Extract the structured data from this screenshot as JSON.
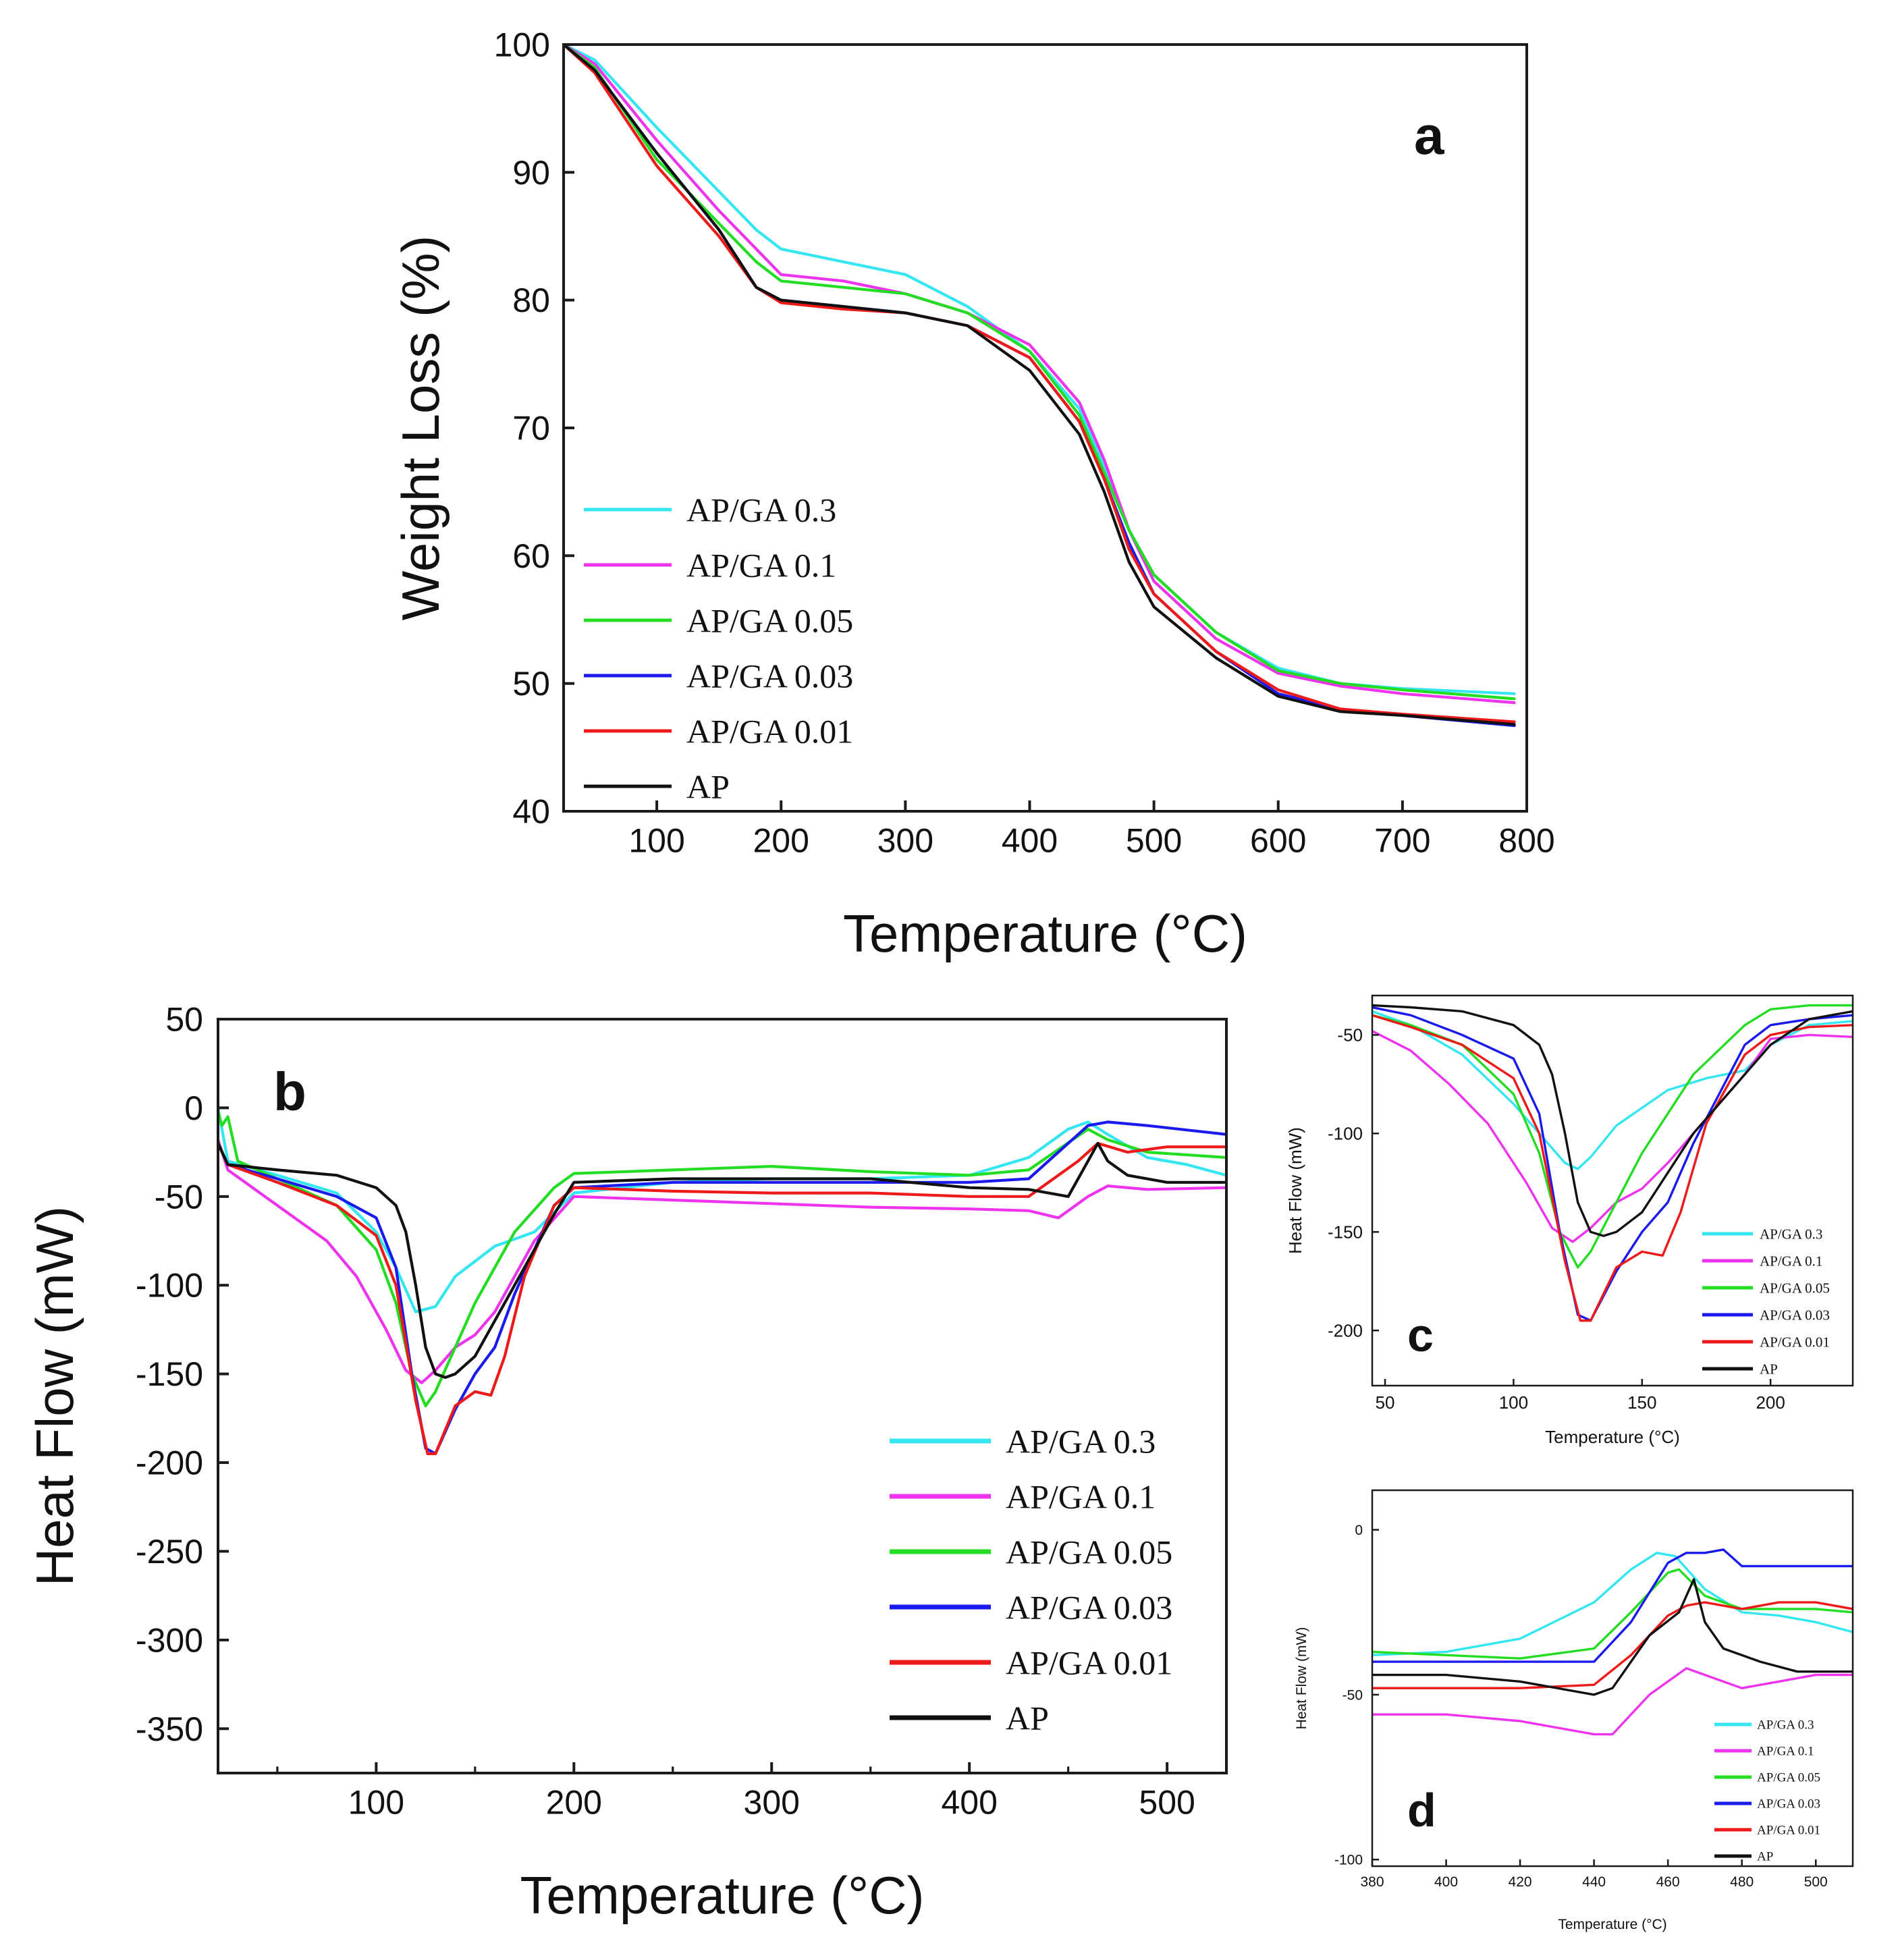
{
  "colors": {
    "AP/GA 0.3": "#33e6f0",
    "AP/GA 0.1": "#ee33ee",
    "AP/GA 0.05": "#22dd22",
    "AP/GA 0.03": "#1a1aee",
    "AP/GA 0.01": "#ee1a1a",
    "AP": "#111111"
  },
  "chart_data": [
    {
      "id": "a",
      "type": "line",
      "panel_label": "a",
      "xlabel": "Temperature (°C)",
      "ylabel": "Weight Loss (%)",
      "xlim": [
        25,
        800
      ],
      "ylim": [
        40,
        100
      ],
      "xticks": [
        100,
        200,
        300,
        400,
        500,
        600,
        700,
        800
      ],
      "yticks": [
        40,
        50,
        60,
        70,
        80,
        90,
        100
      ],
      "legend_position": "middle-left",
      "series": [
        {
          "name": "AP/GA 0.3",
          "x": [
            25,
            50,
            100,
            150,
            180,
            200,
            250,
            300,
            350,
            400,
            440,
            460,
            480,
            500,
            550,
            600,
            650,
            700,
            790
          ],
          "y": [
            100,
            98.8,
            93.5,
            88.5,
            85.5,
            84,
            83,
            82,
            79.5,
            76,
            71.5,
            67,
            62,
            58.5,
            54,
            51.2,
            50,
            49.6,
            49.2
          ]
        },
        {
          "name": "AP/GA 0.1",
          "x": [
            25,
            50,
            100,
            150,
            180,
            200,
            250,
            300,
            350,
            400,
            440,
            460,
            480,
            500,
            550,
            600,
            650,
            700,
            790
          ],
          "y": [
            100,
            98.5,
            92.5,
            87,
            84,
            82,
            81.5,
            80.5,
            79,
            76.5,
            72,
            67.5,
            62,
            58,
            53.5,
            50.8,
            49.8,
            49.2,
            48.5
          ]
        },
        {
          "name": "AP/GA 0.05",
          "x": [
            25,
            50,
            100,
            150,
            180,
            200,
            250,
            300,
            350,
            400,
            440,
            460,
            480,
            500,
            550,
            600,
            650,
            700,
            790
          ],
          "y": [
            100,
            98.2,
            91,
            86,
            83,
            81.5,
            81,
            80.5,
            79,
            76,
            71,
            66.5,
            62,
            58.5,
            54,
            51,
            50,
            49.5,
            48.8
          ]
        },
        {
          "name": "AP/GA 0.03",
          "x": [
            25,
            50,
            100,
            150,
            180,
            200,
            250,
            300,
            350,
            400,
            440,
            460,
            480,
            500,
            550,
            600,
            650,
            700,
            790
          ],
          "y": [
            100,
            98,
            91.5,
            85.5,
            81,
            80,
            79.5,
            79,
            78,
            75.5,
            70.5,
            66,
            61,
            57,
            52.5,
            49.2,
            48,
            47.5,
            46.7
          ]
        },
        {
          "name": "AP/GA 0.01",
          "x": [
            25,
            50,
            100,
            150,
            180,
            200,
            250,
            300,
            350,
            400,
            440,
            460,
            480,
            500,
            550,
            600,
            650,
            700,
            790
          ],
          "y": [
            100,
            97.8,
            90.5,
            85,
            81,
            79.8,
            79.3,
            79,
            78,
            75.5,
            70.5,
            66,
            60.5,
            57,
            52.5,
            49.5,
            48,
            47.6,
            47
          ]
        },
        {
          "name": "AP",
          "x": [
            25,
            50,
            100,
            150,
            180,
            200,
            250,
            300,
            350,
            400,
            440,
            460,
            480,
            500,
            550,
            600,
            650,
            700,
            790
          ],
          "y": [
            100,
            98,
            91.5,
            85.5,
            81,
            80,
            79.5,
            79,
            78,
            74.5,
            69.5,
            65,
            59.5,
            56,
            52,
            49,
            47.8,
            47.5,
            46.8
          ]
        }
      ]
    },
    {
      "id": "b",
      "type": "line",
      "panel_label": "b",
      "xlabel": "Temperature (°C)",
      "ylabel": "Heat Flow (mW)",
      "xlim": [
        20,
        530
      ],
      "ylim": [
        -375,
        50
      ],
      "xticks": [
        100,
        200,
        300,
        400,
        500
      ],
      "yticks": [
        50,
        0,
        -50,
        -100,
        -150,
        -200,
        -250,
        -300,
        -350
      ],
      "legend_position": "bottom-right",
      "series": [
        {
          "name": "AP/GA 0.3",
          "x": [
            20,
            25,
            50,
            80,
            100,
            110,
            120,
            130,
            140,
            160,
            180,
            200,
            250,
            300,
            350,
            400,
            430,
            450,
            460,
            470,
            490,
            510,
            530
          ],
          "y": [
            0,
            -30,
            -38,
            -48,
            -70,
            -90,
            -115,
            -112,
            -95,
            -78,
            -70,
            -48,
            -42,
            -40,
            -40,
            -38,
            -28,
            -12,
            -8,
            -15,
            -28,
            -32,
            -38
          ]
        },
        {
          "name": "AP/GA 0.1",
          "x": [
            20,
            25,
            50,
            75,
            90,
            105,
            115,
            123,
            130,
            140,
            150,
            160,
            180,
            200,
            250,
            300,
            350,
            400,
            430,
            445,
            460,
            470,
            490,
            530
          ],
          "y": [
            -18,
            -35,
            -55,
            -75,
            -95,
            -125,
            -148,
            -155,
            -148,
            -135,
            -128,
            -115,
            -75,
            -50,
            -52,
            -54,
            -56,
            -57,
            -58,
            -62,
            -50,
            -44,
            -46,
            -45
          ]
        },
        {
          "name": "AP/GA 0.05",
          "x": [
            20,
            22,
            25,
            30,
            50,
            80,
            100,
            110,
            118,
            125,
            130,
            140,
            150,
            170,
            190,
            200,
            250,
            300,
            350,
            400,
            430,
            460,
            470,
            490,
            530
          ],
          "y": [
            -2,
            -10,
            -5,
            -30,
            -40,
            -55,
            -80,
            -110,
            -150,
            -168,
            -160,
            -135,
            -110,
            -70,
            -45,
            -37,
            -35,
            -33,
            -36,
            -38,
            -35,
            -12,
            -18,
            -25,
            -28
          ]
        },
        {
          "name": "AP/GA 0.03",
          "x": [
            20,
            25,
            50,
            80,
            100,
            110,
            118,
            125,
            130,
            140,
            150,
            160,
            170,
            180,
            190,
            200,
            250,
            300,
            350,
            400,
            430,
            460,
            470,
            490,
            530
          ],
          "y": [
            -20,
            -32,
            -40,
            -50,
            -62,
            -90,
            -150,
            -192,
            -195,
            -170,
            -150,
            -135,
            -105,
            -80,
            -55,
            -45,
            -42,
            -42,
            -42,
            -42,
            -40,
            -10,
            -8,
            -10,
            -15
          ]
        },
        {
          "name": "AP/GA 0.01",
          "x": [
            20,
            25,
            50,
            80,
            100,
            110,
            120,
            126,
            130,
            140,
            150,
            158,
            165,
            175,
            190,
            200,
            250,
            300,
            350,
            400,
            430,
            455,
            465,
            480,
            500,
            530
          ],
          "y": [
            -20,
            -32,
            -42,
            -55,
            -72,
            -100,
            -165,
            -195,
            -195,
            -168,
            -160,
            -162,
            -140,
            -95,
            -55,
            -45,
            -47,
            -48,
            -48,
            -50,
            -50,
            -30,
            -20,
            -25,
            -22,
            -22
          ]
        },
        {
          "name": "AP",
          "x": [
            20,
            25,
            50,
            80,
            100,
            110,
            115,
            120,
            125,
            130,
            135,
            140,
            150,
            170,
            190,
            200,
            250,
            300,
            350,
            400,
            430,
            450,
            465,
            470,
            480,
            500,
            530
          ],
          "y": [
            -20,
            -32,
            -35,
            -38,
            -45,
            -55,
            -70,
            -100,
            -135,
            -150,
            -152,
            -150,
            -140,
            -100,
            -60,
            -42,
            -40,
            -40,
            -40,
            -45,
            -46,
            -50,
            -20,
            -30,
            -38,
            -42,
            -42
          ]
        }
      ]
    },
    {
      "id": "c",
      "type": "line",
      "panel_label": "c",
      "xlabel": "Temperature (°C)",
      "ylabel": "Heat Flow (mW)",
      "xlim": [
        45,
        232
      ],
      "ylim": [
        -228,
        -30
      ],
      "xticks": [
        50,
        100,
        150,
        200
      ],
      "yticks": [
        -50,
        -100,
        -150,
        -200
      ],
      "legend_position": "bottom-right",
      "series": [
        {
          "name": "AP/GA 0.3",
          "x": [
            45,
            60,
            80,
            100,
            110,
            120,
            125,
            130,
            140,
            160,
            175,
            190,
            200,
            215,
            232
          ],
          "y": [
            -38,
            -45,
            -60,
            -85,
            -100,
            -115,
            -118,
            -112,
            -96,
            -78,
            -72,
            -68,
            -55,
            -45,
            -43
          ]
        },
        {
          "name": "AP/GA 0.1",
          "x": [
            45,
            60,
            75,
            90,
            105,
            115,
            123,
            130,
            140,
            150,
            160,
            170,
            180,
            190,
            200,
            215,
            232
          ],
          "y": [
            -48,
            -58,
            -75,
            -95,
            -125,
            -148,
            -155,
            -148,
            -135,
            -128,
            -115,
            -100,
            -85,
            -70,
            -52,
            -50,
            -51
          ]
        },
        {
          "name": "AP/GA 0.05",
          "x": [
            45,
            60,
            80,
            100,
            110,
            118,
            125,
            130,
            140,
            150,
            170,
            190,
            200,
            215,
            232
          ],
          "y": [
            -40,
            -45,
            -55,
            -80,
            -110,
            -150,
            -168,
            -160,
            -135,
            -110,
            -70,
            -45,
            -37,
            -35,
            -35
          ]
        },
        {
          "name": "AP/GA 0.03",
          "x": [
            45,
            60,
            80,
            100,
            110,
            118,
            125,
            130,
            140,
            150,
            160,
            170,
            180,
            190,
            200,
            215,
            232
          ],
          "y": [
            -36,
            -40,
            -50,
            -62,
            -90,
            -150,
            -192,
            -195,
            -170,
            -150,
            -135,
            -105,
            -80,
            -55,
            -45,
            -42,
            -40
          ]
        },
        {
          "name": "AP/GA 0.01",
          "x": [
            45,
            60,
            80,
            100,
            110,
            120,
            126,
            130,
            140,
            150,
            158,
            165,
            175,
            190,
            200,
            215,
            232
          ],
          "y": [
            -40,
            -46,
            -55,
            -72,
            -100,
            -165,
            -195,
            -195,
            -168,
            -160,
            -162,
            -140,
            -95,
            -60,
            -50,
            -46,
            -45
          ]
        },
        {
          "name": "AP",
          "x": [
            45,
            60,
            80,
            100,
            110,
            115,
            120,
            125,
            130,
            135,
            140,
            150,
            170,
            190,
            200,
            215,
            232
          ],
          "y": [
            -35,
            -36,
            -38,
            -45,
            -55,
            -70,
            -100,
            -135,
            -150,
            -152,
            -150,
            -140,
            -100,
            -70,
            -55,
            -42,
            -38
          ]
        }
      ]
    },
    {
      "id": "d",
      "type": "line",
      "panel_label": "d",
      "xlabel": "Temperature (°C)",
      "ylabel": "Heat Flow (mW)",
      "xlim": [
        380,
        510
      ],
      "ylim": [
        -102,
        12
      ],
      "xticks": [
        380,
        400,
        420,
        440,
        460,
        480,
        500
      ],
      "yticks": [
        0,
        -50,
        -100
      ],
      "legend_position": "bottom-right",
      "series": [
        {
          "name": "AP/GA 0.3",
          "x": [
            380,
            400,
            420,
            440,
            450,
            457,
            462,
            470,
            480,
            490,
            500,
            510
          ],
          "y": [
            -38,
            -37,
            -33,
            -22,
            -12,
            -7,
            -8,
            -18,
            -25,
            -26,
            -28,
            -31
          ]
        },
        {
          "name": "AP/GA 0.1",
          "x": [
            380,
            400,
            420,
            440,
            445,
            455,
            465,
            470,
            480,
            490,
            500,
            510
          ],
          "y": [
            -56,
            -56,
            -58,
            -62,
            -62,
            -50,
            -42,
            -44,
            -48,
            -46,
            -44,
            -44
          ]
        },
        {
          "name": "AP/GA 0.05",
          "x": [
            380,
            400,
            420,
            440,
            450,
            460,
            463,
            470,
            480,
            490,
            500,
            510
          ],
          "y": [
            -37,
            -38,
            -39,
            -36,
            -25,
            -13,
            -12,
            -20,
            -24,
            -24,
            -24,
            -25
          ]
        },
        {
          "name": "AP/GA 0.03",
          "x": [
            380,
            400,
            420,
            440,
            450,
            460,
            465,
            470,
            475,
            480,
            490,
            500,
            510
          ],
          "y": [
            -40,
            -40,
            -40,
            -40,
            -28,
            -10,
            -7,
            -7,
            -6,
            -11,
            -11,
            -11,
            -11
          ]
        },
        {
          "name": "AP/GA 0.01",
          "x": [
            380,
            400,
            420,
            440,
            450,
            460,
            465,
            470,
            480,
            490,
            500,
            510
          ],
          "y": [
            -48,
            -48,
            -48,
            -47,
            -38,
            -26,
            -23,
            -22,
            -24,
            -22,
            -22,
            -24
          ]
        },
        {
          "name": "AP",
          "x": [
            380,
            400,
            420,
            440,
            445,
            455,
            463,
            467,
            470,
            475,
            485,
            495,
            510
          ],
          "y": [
            -44,
            -44,
            -46,
            -50,
            -48,
            -32,
            -25,
            -15,
            -28,
            -36,
            -40,
            -43,
            -43
          ]
        }
      ]
    }
  ]
}
